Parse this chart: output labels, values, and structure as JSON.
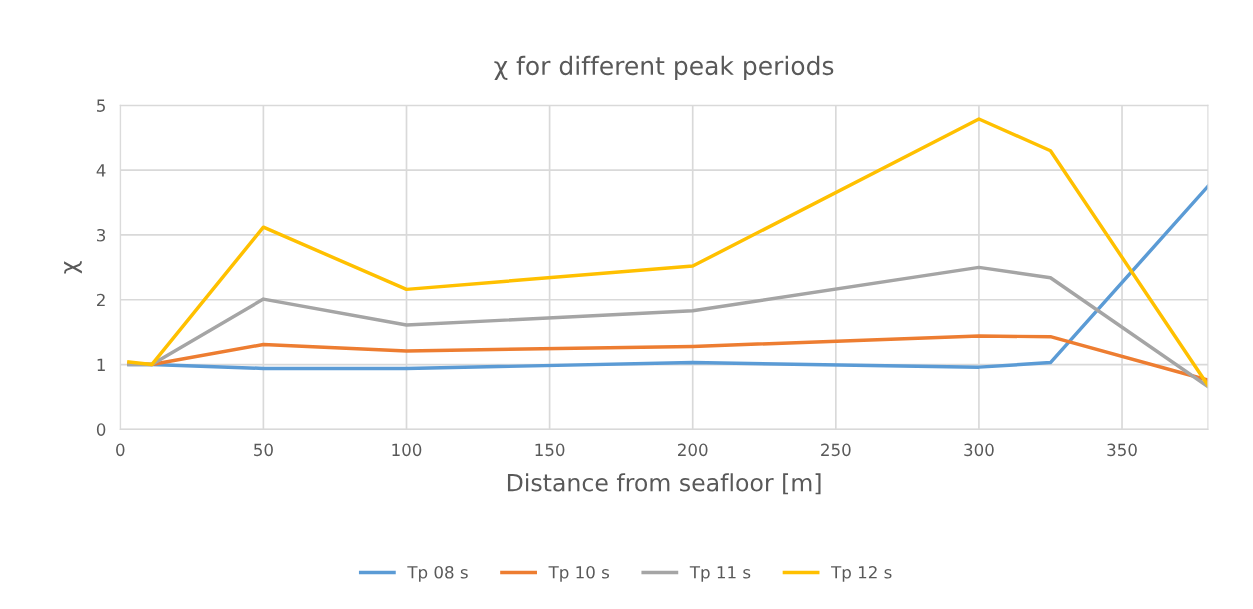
{
  "chart_data": {
    "type": "line",
    "title": "χ for different peak periods",
    "xlabel": "Distance from seafloor [m]",
    "ylabel": "χ",
    "x": [
      3,
      11,
      50,
      100,
      200,
      300,
      325,
      380
    ],
    "series": [
      {
        "name": "Tp 08 s",
        "color": "#5b9bd5",
        "values": [
          1.0,
          1.0,
          0.94,
          0.94,
          1.03,
          0.96,
          1.03,
          3.75
        ]
      },
      {
        "name": "Tp 10 s",
        "color": "#ed7d31",
        "values": [
          1.02,
          1.0,
          1.31,
          1.21,
          1.28,
          1.44,
          1.43,
          0.76
        ]
      },
      {
        "name": "Tp 11 s",
        "color": "#a5a5a5",
        "values": [
          1.0,
          1.0,
          2.01,
          1.61,
          1.83,
          2.5,
          2.34,
          0.66
        ]
      },
      {
        "name": "Tp 12 s",
        "color": "#ffc000",
        "values": [
          1.04,
          1.0,
          3.12,
          2.16,
          2.52,
          4.79,
          4.3,
          0.68
        ]
      }
    ],
    "xlim": [
      0,
      380
    ],
    "xticks": [
      0,
      50,
      100,
      150,
      200,
      250,
      300,
      350
    ],
    "ylim": [
      0,
      5
    ],
    "yticks": [
      0,
      1,
      2,
      3,
      4,
      5
    ],
    "grid": true,
    "legend": "bottom",
    "marker": "none",
    "line_style": "solid"
  }
}
